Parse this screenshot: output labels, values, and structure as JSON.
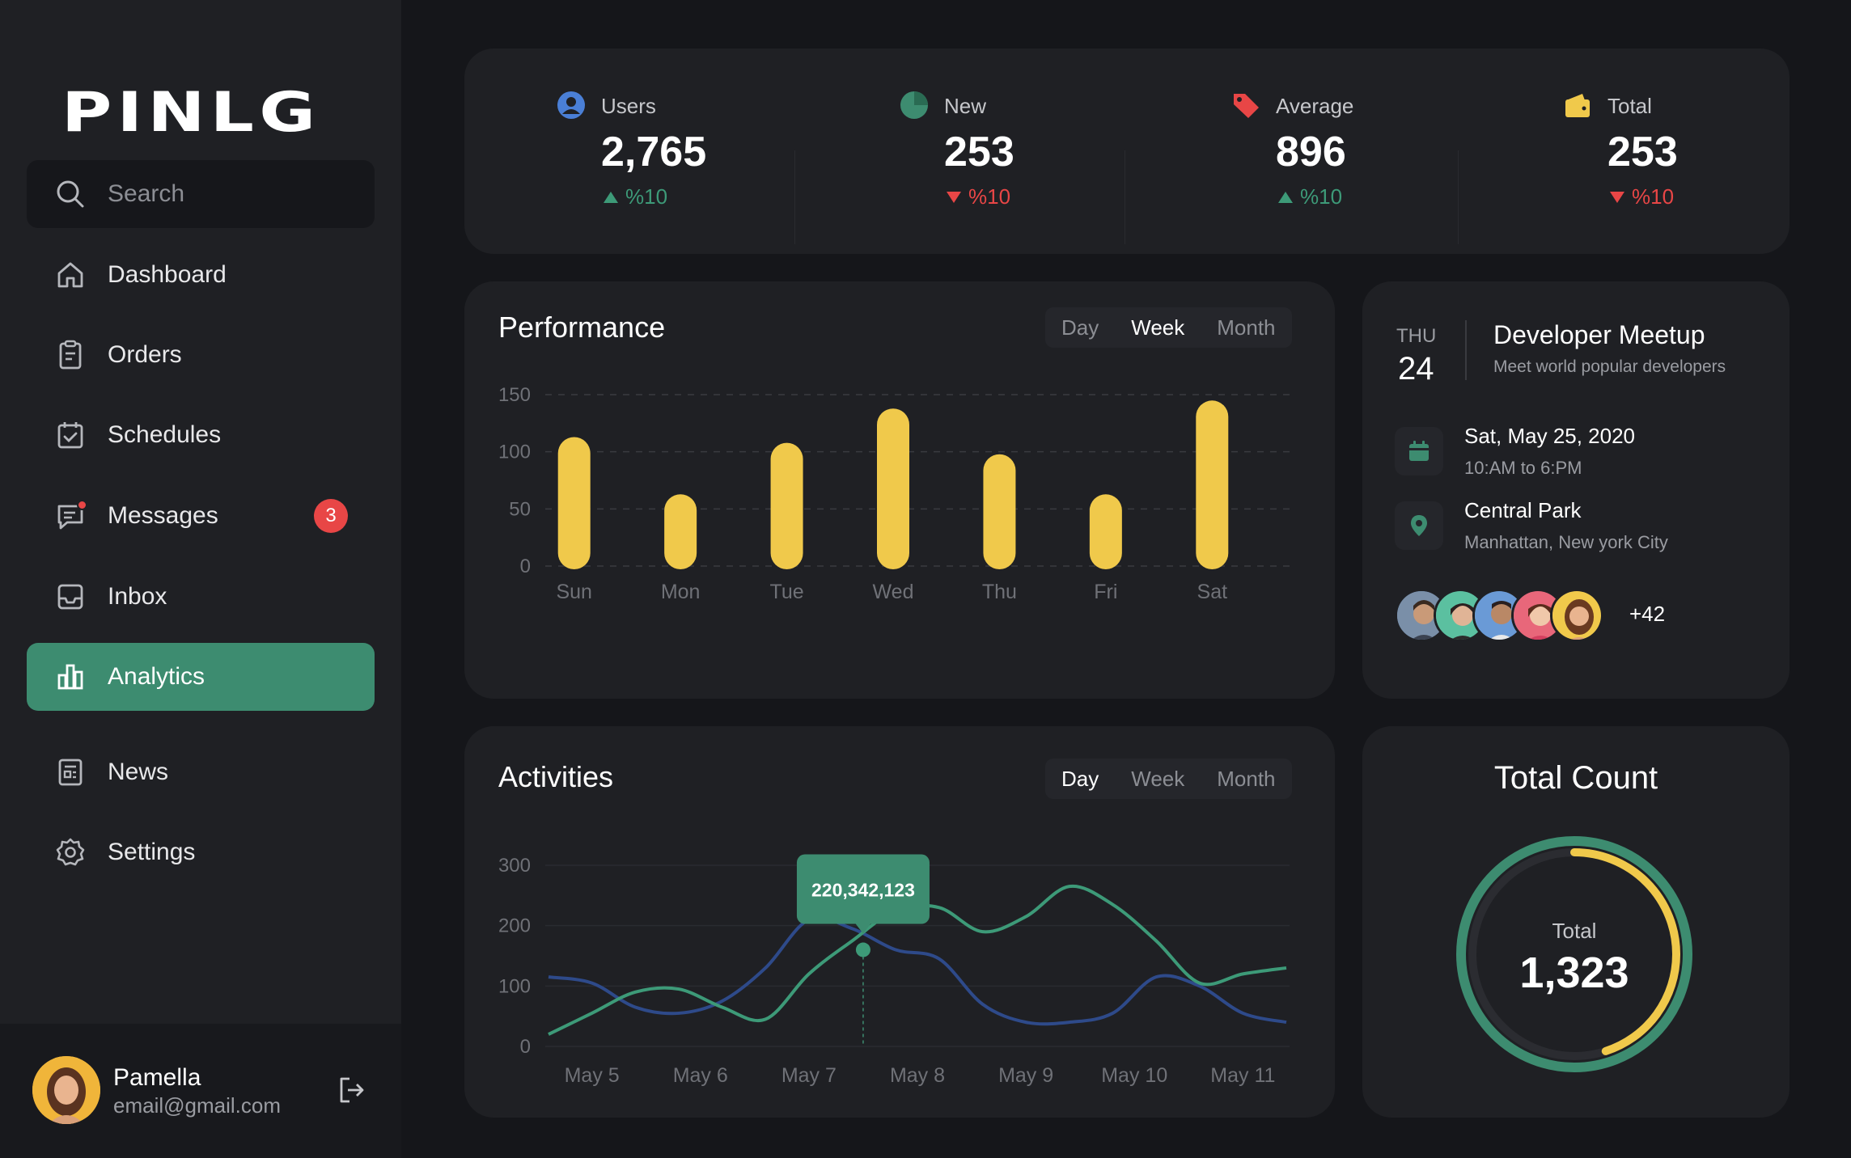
{
  "app": {
    "logo": "PINLG"
  },
  "search": {
    "placeholder": "Search"
  },
  "nav": [
    {
      "label": "Dashboard",
      "icon": "home-icon"
    },
    {
      "label": "Orders",
      "icon": "clipboard-icon"
    },
    {
      "label": "Schedules",
      "icon": "calendar-check-icon"
    },
    {
      "label": "Messages",
      "icon": "message-icon",
      "badge": "3"
    },
    {
      "label": "Inbox",
      "icon": "inbox-icon"
    },
    {
      "label": "Analytics",
      "icon": "bar-chart-icon",
      "active": true
    },
    {
      "label": "News",
      "icon": "news-icon"
    },
    {
      "label": "Settings",
      "icon": "gear-icon"
    }
  ],
  "user": {
    "name": "Pamella",
    "email": "email@gmail.com"
  },
  "stats": [
    {
      "label": "Users",
      "value": "2,765",
      "change": "%10",
      "trend": "up",
      "icon": "user-circle-icon",
      "color": "#4a7fd6"
    },
    {
      "label": "New",
      "value": "253",
      "change": "%10",
      "trend": "down",
      "icon": "pie-icon",
      "color": "#3d8c70"
    },
    {
      "label": "Average",
      "value": "896",
      "change": "%10",
      "trend": "up",
      "icon": "tag-icon",
      "color": "#e84646"
    },
    {
      "label": "Total",
      "value": "253",
      "change": "%10",
      "trend": "down",
      "icon": "wallet-icon",
      "color": "#f0c94b"
    }
  ],
  "performance": {
    "title": "Performance",
    "tabs": [
      "Day",
      "Week",
      "Month"
    ],
    "active_tab": "Week"
  },
  "activities": {
    "title": "Activities",
    "tabs": [
      "Day",
      "Week",
      "Month"
    ],
    "active_tab": "Day",
    "tooltip": "220,342,123"
  },
  "event": {
    "day": "THU",
    "date": "24",
    "title": "Developer Meetup",
    "subtitle": "Meet world popular developers",
    "when": "Sat, May 25, 2020",
    "time": "10:AM to 6:PM",
    "place": "Central Park",
    "address": "Manhattan, New york City",
    "more": "+42"
  },
  "total_count": {
    "title": "Total Count",
    "label": "Total",
    "value": "1,323",
    "progress": 0.45
  },
  "colors": {
    "accent": "#3d8c70",
    "yellow": "#f0c94b",
    "blue": "#2e4a8a",
    "red": "#e84646"
  },
  "chart_data": [
    {
      "type": "bar",
      "title": "Performance",
      "categories": [
        "Sun",
        "Mon",
        "Tue",
        "Wed",
        "Thu",
        "Fri",
        "Sat"
      ],
      "values": [
        110,
        60,
        105,
        135,
        95,
        60,
        142
      ],
      "yticks": [
        0,
        50,
        100,
        150
      ],
      "ylim": [
        0,
        150
      ],
      "grid": true,
      "color": "#f0c94b"
    },
    {
      "type": "line",
      "title": "Activities",
      "categories": [
        "May 5",
        "May 6",
        "May 7",
        "May 8",
        "May 9",
        "May 10",
        "May 11"
      ],
      "yticks": [
        0,
        100,
        200,
        300
      ],
      "ylim": [
        0,
        300
      ],
      "grid": true,
      "x": [
        4.6,
        5.0,
        5.4,
        5.8,
        6.2,
        6.6,
        7.0,
        7.4,
        7.8,
        8.2,
        8.6,
        9.0,
        9.4,
        9.8,
        10.2,
        10.6,
        11.0,
        11.4
      ],
      "series": [
        {
          "color": "#3d9a78",
          "values": [
            20,
            55,
            90,
            95,
            65,
            45,
            120,
            175,
            225,
            230,
            190,
            215,
            265,
            235,
            175,
            105,
            120,
            130
          ]
        },
        {
          "color": "#2e4a8a",
          "values": [
            115,
            105,
            65,
            55,
            75,
            130,
            210,
            195,
            160,
            145,
            70,
            40,
            40,
            55,
            115,
            100,
            55,
            40
          ]
        }
      ],
      "highlight": {
        "x": 7.5,
        "y": 160,
        "label": "220,342,123"
      }
    }
  ]
}
